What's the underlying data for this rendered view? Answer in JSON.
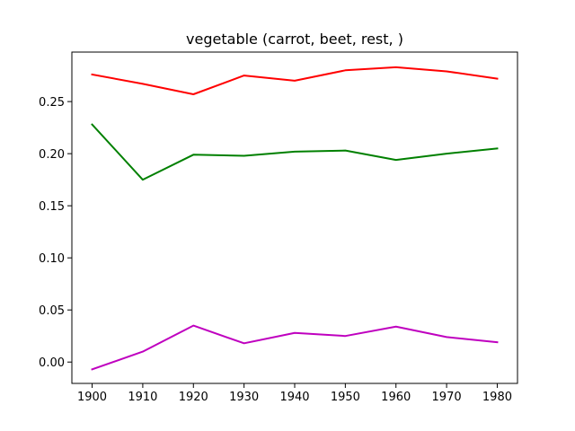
{
  "chart_data": {
    "type": "line",
    "title": "vegetable (carrot, beet, rest, )",
    "xlabel": "",
    "ylabel": "",
    "x": [
      1900,
      1910,
      1920,
      1930,
      1940,
      1950,
      1960,
      1970,
      1980
    ],
    "xticks": [
      1900,
      1910,
      1920,
      1930,
      1940,
      1950,
      1960,
      1970,
      1980
    ],
    "yticks": [
      0.0,
      0.05,
      0.1,
      0.15,
      0.2,
      0.25
    ],
    "ytick_labels": [
      "0.00",
      "0.05",
      "0.10",
      "0.15",
      "0.20",
      "0.25"
    ],
    "xlim": [
      1896,
      1984
    ],
    "ylim": [
      -0.0205,
      0.2975
    ],
    "grid": false,
    "legend": "none",
    "series": [
      {
        "color": "#ff0000",
        "values": [
          0.276,
          0.267,
          0.257,
          0.275,
          0.27,
          0.28,
          0.283,
          0.279,
          0.272
        ]
      },
      {
        "color": "#008000",
        "values": [
          0.228,
          0.175,
          0.199,
          0.198,
          0.202,
          0.203,
          0.194,
          0.2,
          0.205
        ]
      },
      {
        "color": "#bf00bf",
        "values": [
          -0.007,
          0.01,
          0.035,
          0.018,
          0.028,
          0.025,
          0.034,
          0.024,
          0.019
        ]
      }
    ]
  }
}
